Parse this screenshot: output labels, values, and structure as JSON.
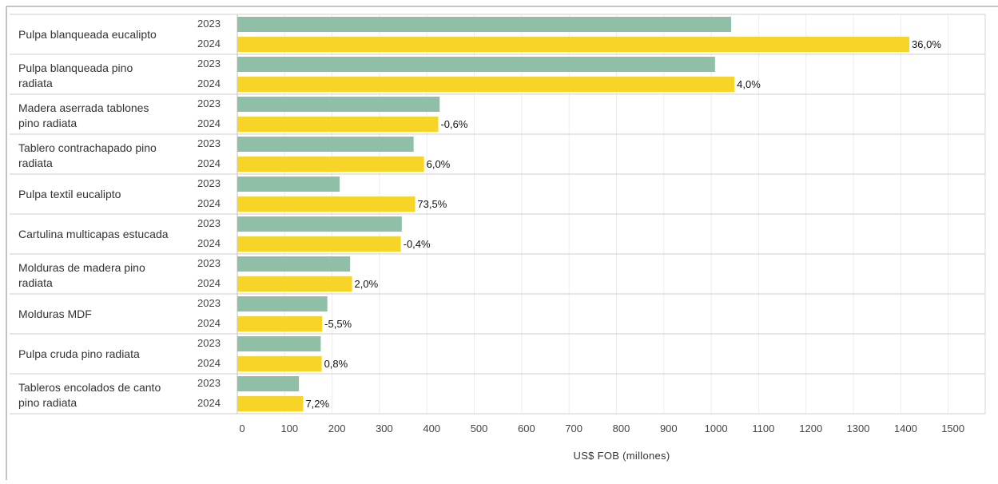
{
  "chart_data": {
    "type": "bar",
    "orientation": "horizontal",
    "xlabel": "US$ FOB (millones)",
    "xlim": [
      0,
      1550
    ],
    "xticks": [
      0,
      100,
      200,
      300,
      400,
      500,
      600,
      700,
      800,
      900,
      1000,
      1100,
      1200,
      1300,
      1400,
      1500
    ],
    "grid": true,
    "colors": {
      "2023": "#8fbfa6",
      "2024": "#f7d428"
    },
    "categories": [
      {
        "label": [
          "Pulpa blanqueada eucalipto"
        ],
        "v2023": 1042,
        "v2024": 1418,
        "change": "36,0%"
      },
      {
        "label": [
          "Pulpa blanqueada pino",
          "radiata"
        ],
        "v2023": 1008,
        "v2024": 1049,
        "change": "4,0%"
      },
      {
        "label": [
          "Madera aserrada tablones",
          "pino radiata"
        ],
        "v2023": 427,
        "v2024": 424,
        "change": "-0,6%"
      },
      {
        "label": [
          "Tablero contrachapado pino",
          "radiata"
        ],
        "v2023": 372,
        "v2024": 394,
        "change": "6,0%"
      },
      {
        "label": [
          "Pulpa textil eucalipto"
        ],
        "v2023": 216,
        "v2024": 375,
        "change": "73,5%"
      },
      {
        "label": [
          "Cartulina multicapas estucada"
        ],
        "v2023": 347,
        "v2024": 345,
        "change": "-0,4%"
      },
      {
        "label": [
          "Molduras de madera pino",
          "radiata"
        ],
        "v2023": 238,
        "v2024": 242,
        "change": "2,0%"
      },
      {
        "label": [
          "Molduras MDF"
        ],
        "v2023": 190,
        "v2024": 179,
        "change": "-5,5%"
      },
      {
        "label": [
          "Pulpa cruda pino radiata"
        ],
        "v2023": 176,
        "v2024": 178,
        "change": "0,8%"
      },
      {
        "label": [
          "Tableros encolados de canto",
          "pino radiata"
        ],
        "v2023": 130,
        "v2024": 139,
        "change": "7,2%"
      }
    ],
    "series": [
      {
        "name": "2023"
      },
      {
        "name": "2024"
      }
    ]
  }
}
